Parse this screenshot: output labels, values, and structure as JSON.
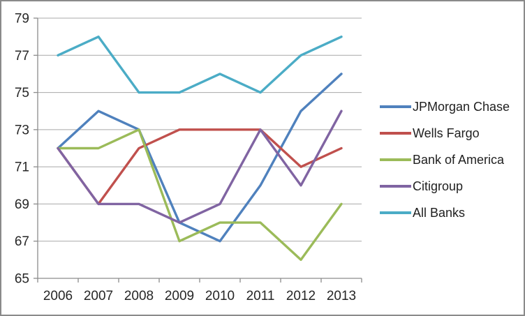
{
  "frame": {
    "background": "#ffffff",
    "border_color": "#8a8a8a"
  },
  "chart_data": {
    "type": "line",
    "title": "",
    "xlabel": "",
    "ylabel": "",
    "categories": [
      "2006",
      "2007",
      "2008",
      "2009",
      "2010",
      "2011",
      "2012",
      "2013"
    ],
    "series": [
      {
        "name": "JPMorgan Chase",
        "color": "#4F81BD",
        "values": [
          72,
          74,
          73,
          68,
          67,
          70,
          74,
          76
        ]
      },
      {
        "name": "Wells Fargo",
        "color": "#C0504D",
        "values": [
          72,
          69,
          72,
          73,
          73,
          73,
          71,
          72
        ]
      },
      {
        "name": "Bank of America",
        "color": "#9BBB59",
        "values": [
          72,
          72,
          73,
          67,
          68,
          68,
          66,
          69
        ]
      },
      {
        "name": "Citigroup",
        "color": "#8064A2",
        "values": [
          72,
          69,
          69,
          68,
          69,
          73,
          70,
          74
        ]
      },
      {
        "name": "All Banks",
        "color": "#4BACC6",
        "values": [
          77,
          78,
          75,
          75,
          76,
          75,
          77,
          78
        ]
      }
    ],
    "ylim": [
      65,
      79
    ],
    "yticks": [
      65,
      67,
      69,
      71,
      73,
      75,
      77,
      79
    ],
    "grid": "horizontal",
    "legend_position": "right",
    "axis_color": "#8c8c8c",
    "gridline_color": "#a8a8a8",
    "tick_label_color": "#262626"
  }
}
